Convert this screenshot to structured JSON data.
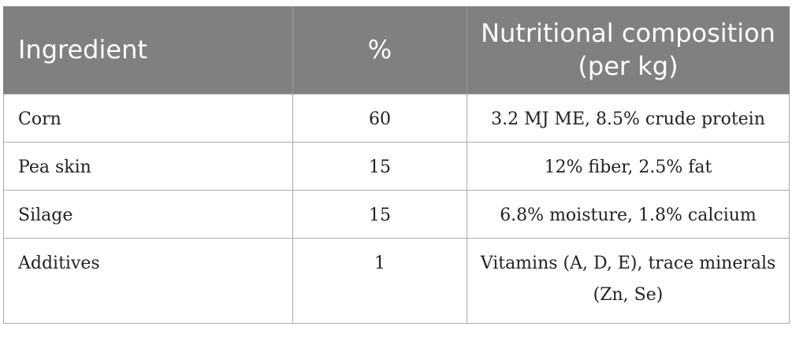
{
  "table": {
    "headers": [
      "Ingredient",
      "%",
      "Nutritional composition (per kg)"
    ],
    "rows": [
      {
        "ingredient": "Corn",
        "percent": "60",
        "composition": "3.2 MJ ME, 8.5% crude protein"
      },
      {
        "ingredient": "Pea skin",
        "percent": "15",
        "composition": "12% fiber, 2.5% fat"
      },
      {
        "ingredient": "Silage",
        "percent": "15",
        "composition": "6.8% moisture, 1.8% calcium"
      },
      {
        "ingredient": "Additives",
        "percent": "1",
        "composition": "Vitamins (A, D, E), trace minerals (Zn, Se)"
      }
    ]
  }
}
